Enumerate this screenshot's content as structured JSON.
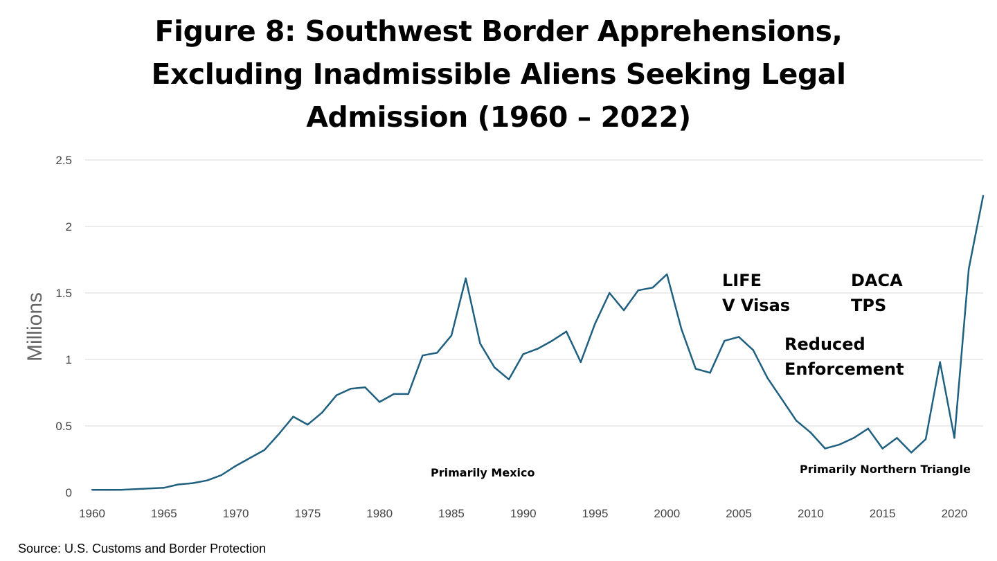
{
  "title_lines": [
    "Figure 8: Southwest Border Apprehensions,",
    "Excluding Inadmissible Aliens Seeking Legal",
    "Admission (1960 – 2022)"
  ],
  "source": "Source: U.S. Customs and Border Protection",
  "chart_data": {
    "type": "line",
    "title": "Figure 8: Southwest Border Apprehensions, Excluding Inadmissible Aliens Seeking Legal Admission (1960 – 2022)",
    "xlabel": "",
    "ylabel": "Millions",
    "xlim": [
      1960,
      2022
    ],
    "ylim": [
      0,
      2.5
    ],
    "yticks": [
      0,
      0.5,
      1,
      1.5,
      2,
      2.5
    ],
    "ytick_labels": [
      "0",
      "0.5",
      "1",
      "1.5",
      "2",
      "2.5"
    ],
    "xticks": [
      1960,
      1965,
      1970,
      1975,
      1980,
      1985,
      1990,
      1995,
      2000,
      2005,
      2010,
      2015,
      2020
    ],
    "grid": "horizontal",
    "line_color": "#1f5f80",
    "series": [
      {
        "x": [
          1960,
          1961,
          1962,
          1963,
          1964,
          1965,
          1966,
          1967,
          1968,
          1969,
          1970,
          1971,
          1972,
          1973,
          1974,
          1975,
          1976,
          1977,
          1978,
          1979,
          1980,
          1981,
          1982,
          1983,
          1984,
          1985,
          1986,
          1987,
          1988,
          1989,
          1990,
          1991,
          1992,
          1993,
          1994,
          1995,
          1996,
          1997,
          1998,
          1999,
          2000,
          2001,
          2002,
          2003,
          2004,
          2005,
          2006,
          2007,
          2008,
          2009,
          2010,
          2011,
          2012,
          2013,
          2014,
          2015,
          2016,
          2017,
          2018,
          2019,
          2020,
          2021,
          2022
        ],
        "values": [
          0.02,
          0.02,
          0.02,
          0.025,
          0.03,
          0.035,
          0.06,
          0.07,
          0.09,
          0.13,
          0.2,
          0.26,
          0.32,
          0.44,
          0.57,
          0.51,
          0.6,
          0.73,
          0.78,
          0.79,
          0.68,
          0.74,
          0.74,
          1.03,
          1.05,
          1.18,
          1.61,
          1.12,
          0.94,
          0.85,
          1.04,
          1.08,
          1.14,
          1.21,
          0.98,
          1.27,
          1.5,
          1.37,
          1.52,
          1.54,
          1.64,
          1.23,
          0.93,
          0.9,
          1.14,
          1.17,
          1.07,
          0.86,
          0.7,
          0.54,
          0.45,
          0.33,
          0.36,
          0.41,
          0.48,
          0.33,
          0.41,
          0.3,
          0.4,
          0.98,
          0.41,
          1.68,
          2.23
        ]
      }
    ],
    "annotations": [
      {
        "id": "life",
        "lines": [
          "LIFE",
          "V Visas"
        ]
      },
      {
        "id": "daca",
        "lines": [
          "DACA",
          "TPS"
        ]
      },
      {
        "id": "reduced",
        "lines": [
          "Reduced",
          "Enforcement"
        ]
      },
      {
        "id": "mexico",
        "lines": [
          "Primarily Mexico"
        ]
      },
      {
        "id": "triangle",
        "lines": [
          "Primarily Northern Triangle"
        ]
      }
    ]
  }
}
